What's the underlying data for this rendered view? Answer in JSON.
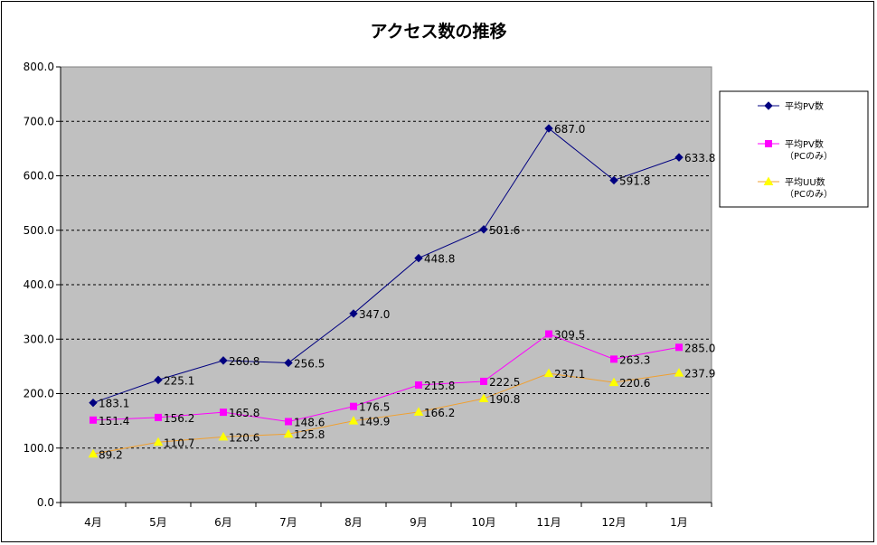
{
  "chart_data": {
    "type": "line",
    "title": "アクセス数の推移",
    "xlabel": "",
    "ylabel": "",
    "categories": [
      "4月",
      "5月",
      "6月",
      "7月",
      "8月",
      "9月",
      "10月",
      "11月",
      "12月",
      "1月"
    ],
    "ylim": [
      0,
      800
    ],
    "yticks": [
      "0.0",
      "100.0",
      "200.0",
      "300.0",
      "400.0",
      "500.0",
      "600.0",
      "700.0",
      "800.0"
    ],
    "grid": true,
    "legend_position": "right",
    "plot_background": "#c0c0c0",
    "series": [
      {
        "name": "平均PV数",
        "name_line2": "",
        "color": "#000080",
        "marker": "diamond",
        "values": [
          183.1,
          225.1,
          260.8,
          256.5,
          347.0,
          448.8,
          501.6,
          687.0,
          591.8,
          633.8
        ],
        "labels": [
          "183.1",
          "225.1",
          "260.8",
          "256.5",
          "347.0",
          "448.8",
          "501.6",
          "687.0",
          "591.8",
          "633.8"
        ]
      },
      {
        "name": "平均PV数",
        "name_line2": "（PCのみ）",
        "color": "#ff00ff",
        "marker": "square",
        "values": [
          151.4,
          156.2,
          165.8,
          148.6,
          176.5,
          215.8,
          222.5,
          309.5,
          263.3,
          285.0
        ],
        "labels": [
          "151.4",
          "156.2",
          "165.8",
          "148.6",
          "176.5",
          "215.8",
          "222.5",
          "309.5",
          "263.3",
          "285.0"
        ]
      },
      {
        "name": "平均UU数",
        "name_line2": "（PCのみ）",
        "color": "#ffff00",
        "line_color": "#f0a030",
        "marker": "triangle",
        "values": [
          89.2,
          110.7,
          120.6,
          125.8,
          149.9,
          166.2,
          190.8,
          237.1,
          220.6,
          237.9
        ],
        "labels": [
          "89.2",
          "110.7",
          "120.6",
          "125.8",
          "149.9",
          "166.2",
          "190.8",
          "237.1",
          "220.6",
          "237.9"
        ]
      }
    ]
  }
}
